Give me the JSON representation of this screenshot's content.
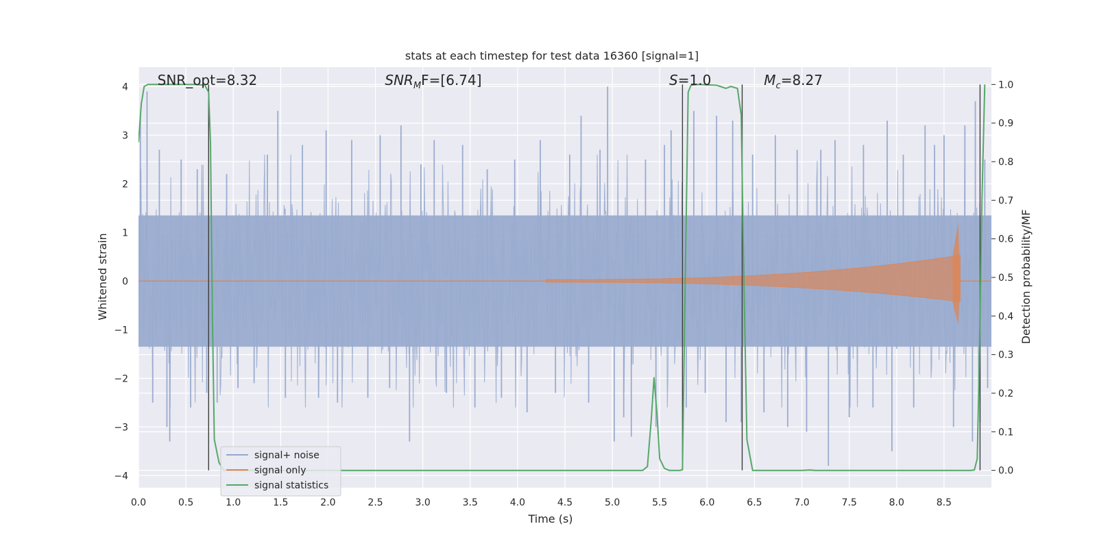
{
  "chart_data": {
    "type": "line",
    "title": "stats at each timestep for test data 16360 [signal=1]",
    "xlabel": "Time (s)",
    "ylabel": "Whitened strain",
    "ylabel_right": "Detection probability/MF",
    "xlim": [
      0.0,
      9.0
    ],
    "ylim": [
      -4.25,
      4.4
    ],
    "ylim_right": [
      -0.045,
      1.045
    ],
    "xticks": [
      "0.0",
      "0.5",
      "1.0",
      "1.5",
      "2.0",
      "2.5",
      "3.0",
      "3.5",
      "4.0",
      "4.5",
      "5.0",
      "5.5",
      "6.0",
      "6.5",
      "7.0",
      "7.5",
      "8.0",
      "8.5"
    ],
    "yticks": [
      "4",
      "3",
      "2",
      "1",
      "0",
      "−1",
      "−2",
      "−3",
      "−4"
    ],
    "yticks_right": [
      "1.0",
      "0.9",
      "0.8",
      "0.7",
      "0.6",
      "0.5",
      "0.4",
      "0.3",
      "0.2",
      "0.1",
      "0.0"
    ],
    "grid": true,
    "legend_position": "lower-left",
    "colors": {
      "background": "#eaeaf2",
      "noise": "#4c72b0",
      "signal": "#dd8452",
      "stats": "#55a868",
      "vline": "#3c3c3c"
    },
    "annotations": [
      {
        "pre": "SNR_opt=8.32",
        "sym": "",
        "sub": "",
        "post": "",
        "x": 0.2
      },
      {
        "pre": "",
        "sym": "SNR",
        "sub": "M",
        "post": "F=[6.74]",
        "x": 2.6
      },
      {
        "pre": "",
        "sym": "S",
        "sub": "",
        "post": "=1.0",
        "x": 5.6
      },
      {
        "pre": "",
        "sym": "M",
        "sub": "c",
        "post": "=8.27",
        "x": 6.6
      }
    ],
    "series": [
      {
        "name": "signal+ noise",
        "band_width": 1.3,
        "spikes": [
          {
            "x": 0.02,
            "y": 3.4
          },
          {
            "x": 0.09,
            "y": 3.9
          },
          {
            "x": 0.15,
            "y": -2.5
          },
          {
            "x": 0.22,
            "y": 2.7
          },
          {
            "x": 0.3,
            "y": -3.0
          },
          {
            "x": 0.33,
            "y": -3.3
          },
          {
            "x": 0.45,
            "y": 2.5
          },
          {
            "x": 0.55,
            "y": -2.6
          },
          {
            "x": 0.62,
            "y": 2.3
          },
          {
            "x": 0.72,
            "y": -2.3
          },
          {
            "x": 0.83,
            "y": -2.5
          },
          {
            "x": 0.93,
            "y": 2.2
          },
          {
            "x": 1.05,
            "y": -2.2
          },
          {
            "x": 1.22,
            "y": -2.1
          },
          {
            "x": 1.36,
            "y": 2.6
          },
          {
            "x": 1.47,
            "y": 3.5
          },
          {
            "x": 1.55,
            "y": -2.4
          },
          {
            "x": 1.73,
            "y": 2.8
          },
          {
            "x": 1.9,
            "y": -2.4
          },
          {
            "x": 1.98,
            "y": 3.1
          },
          {
            "x": 2.1,
            "y": -2.5
          },
          {
            "x": 2.25,
            "y": 2.9
          },
          {
            "x": 2.42,
            "y": -2.4
          },
          {
            "x": 2.55,
            "y": 3.0
          },
          {
            "x": 2.65,
            "y": -2.2
          },
          {
            "x": 2.77,
            "y": 3.2
          },
          {
            "x": 2.86,
            "y": -3.3
          },
          {
            "x": 2.98,
            "y": 2.4
          },
          {
            "x": 3.12,
            "y": 2.9
          },
          {
            "x": 3.25,
            "y": -2.3
          },
          {
            "x": 3.42,
            "y": 2.8
          },
          {
            "x": 3.55,
            "y": -2.6
          },
          {
            "x": 3.68,
            "y": 2.3
          },
          {
            "x": 3.83,
            "y": -2.4
          },
          {
            "x": 3.97,
            "y": 2.5
          },
          {
            "x": 4.1,
            "y": -2.7
          },
          {
            "x": 4.24,
            "y": 2.9
          },
          {
            "x": 4.4,
            "y": -2.3
          },
          {
            "x": 4.55,
            "y": 2.6
          },
          {
            "x": 4.67,
            "y": 3.4
          },
          {
            "x": 4.75,
            "y": -2.5
          },
          {
            "x": 4.87,
            "y": 2.7
          },
          {
            "x": 4.95,
            "y": 4.0
          },
          {
            "x": 5.02,
            "y": -3.3
          },
          {
            "x": 5.12,
            "y": -2.8
          },
          {
            "x": 5.2,
            "y": -3.2
          },
          {
            "x": 5.35,
            "y": 2.5
          },
          {
            "x": 5.46,
            "y": -3.0
          },
          {
            "x": 5.55,
            "y": 2.8
          },
          {
            "x": 5.62,
            "y": 3.1
          },
          {
            "x": 5.78,
            "y": -2.6
          },
          {
            "x": 5.86,
            "y": 3.5
          },
          {
            "x": 5.98,
            "y": -2.3
          },
          {
            "x": 6.1,
            "y": 3.4
          },
          {
            "x": 6.2,
            "y": -2.9
          },
          {
            "x": 6.27,
            "y": 3.3
          },
          {
            "x": 6.36,
            "y": -2.9
          },
          {
            "x": 6.48,
            "y": 2.6
          },
          {
            "x": 6.6,
            "y": -2.7
          },
          {
            "x": 6.72,
            "y": 3.0
          },
          {
            "x": 6.85,
            "y": -3.0
          },
          {
            "x": 6.95,
            "y": 2.7
          },
          {
            "x": 7.05,
            "y": -3.1
          },
          {
            "x": 7.2,
            "y": 2.7
          },
          {
            "x": 7.28,
            "y": -3.8
          },
          {
            "x": 7.35,
            "y": 2.9
          },
          {
            "x": 7.5,
            "y": -2.8
          },
          {
            "x": 7.65,
            "y": 2.8
          },
          {
            "x": 7.75,
            "y": -2.6
          },
          {
            "x": 7.9,
            "y": 3.3
          },
          {
            "x": 7.95,
            "y": -3.5
          },
          {
            "x": 8.07,
            "y": 2.6
          },
          {
            "x": 8.18,
            "y": -2.6
          },
          {
            "x": 8.3,
            "y": 3.2
          },
          {
            "x": 8.4,
            "y": 2.8
          },
          {
            "x": 8.5,
            "y": 3.0
          },
          {
            "x": 8.6,
            "y": -3.0
          },
          {
            "x": 8.72,
            "y": 3.2
          },
          {
            "x": 8.8,
            "y": -3.3
          },
          {
            "x": 8.83,
            "y": 3.7
          },
          {
            "x": 8.88,
            "y": -2.9
          },
          {
            "x": 8.93,
            "y": 2.5
          },
          {
            "x": 8.96,
            "y": -2.2
          }
        ]
      },
      {
        "name": "signal only",
        "start": 4.3,
        "end": 8.67,
        "peak_positive": 1.2,
        "peak_negative": -0.9
      },
      {
        "name": "signal statistics",
        "points": [
          [
            0.0,
            0.85
          ],
          [
            0.03,
            0.95
          ],
          [
            0.06,
            0.995
          ],
          [
            0.1,
            1.0
          ],
          [
            0.2,
            1.0
          ],
          [
            0.4,
            1.0
          ],
          [
            0.6,
            1.0
          ],
          [
            0.7,
            0.998
          ],
          [
            0.74,
            0.98
          ],
          [
            0.76,
            0.85
          ],
          [
            0.78,
            0.4
          ],
          [
            0.8,
            0.08
          ],
          [
            0.85,
            0.02
          ],
          [
            0.9,
            0.0
          ],
          [
            1.5,
            0.0
          ],
          [
            2.5,
            0.0
          ],
          [
            3.5,
            0.0
          ],
          [
            4.5,
            0.0
          ],
          [
            5.2,
            0.0
          ],
          [
            5.32,
            0.0
          ],
          [
            5.37,
            0.01
          ],
          [
            5.41,
            0.13
          ],
          [
            5.44,
            0.24
          ],
          [
            5.47,
            0.15
          ],
          [
            5.5,
            0.03
          ],
          [
            5.55,
            0.005
          ],
          [
            5.6,
            0.0
          ],
          [
            5.72,
            0.0
          ],
          [
            5.74,
            0.003
          ],
          [
            5.77,
            0.5
          ],
          [
            5.8,
            0.98
          ],
          [
            5.83,
            0.998
          ],
          [
            5.9,
            1.0
          ],
          [
            6.1,
            0.998
          ],
          [
            6.2,
            0.99
          ],
          [
            6.25,
            0.995
          ],
          [
            6.32,
            0.99
          ],
          [
            6.36,
            0.92
          ],
          [
            6.38,
            0.6
          ],
          [
            6.42,
            0.08
          ],
          [
            6.48,
            0.0
          ],
          [
            6.6,
            0.0
          ],
          [
            7.0,
            0.0
          ],
          [
            7.08,
            0.001
          ],
          [
            7.15,
            0.0
          ],
          [
            7.8,
            0.0
          ],
          [
            8.2,
            0.0
          ],
          [
            8.6,
            0.0
          ],
          [
            8.78,
            0.0
          ],
          [
            8.82,
            0.001
          ],
          [
            8.85,
            0.03
          ],
          [
            8.87,
            0.25
          ],
          [
            8.9,
            0.7
          ],
          [
            8.93,
            1.0
          ]
        ]
      }
    ],
    "vlines": [
      0.74,
      5.74,
      6.37,
      8.88
    ]
  }
}
